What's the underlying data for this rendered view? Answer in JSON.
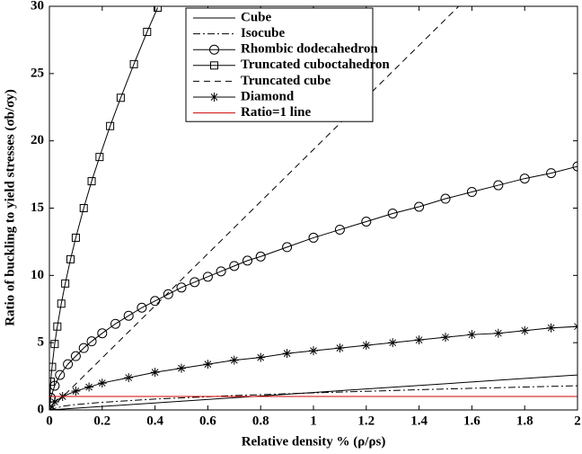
{
  "chart_data": {
    "type": "line",
    "xlabel": "Relative density % (ρ/ρs)",
    "ylabel": "Ratio of buckling to yield stresses (σb/σy)",
    "xlim": [
      0,
      2
    ],
    "ylim": [
      0,
      30
    ],
    "xticks": [
      0,
      0.2,
      0.4,
      0.6,
      0.8,
      1,
      1.2,
      1.4,
      1.6,
      1.8,
      2
    ],
    "yticks": [
      0,
      5,
      10,
      15,
      20,
      25,
      30
    ],
    "legend": "upper center",
    "series": [
      {
        "name": "Cube",
        "color": "#000000",
        "line_style": "solid",
        "x": [
          0,
          2
        ],
        "values": [
          0,
          2.6
        ]
      },
      {
        "name": "Isocube",
        "color": "#000000",
        "line_style": "dashdot",
        "x": [
          0,
          0.05,
          0.1,
          0.2,
          0.4,
          0.7,
          1,
          1.5,
          2
        ],
        "values": [
          0,
          0.28,
          0.4,
          0.57,
          0.81,
          1.07,
          1.27,
          1.56,
          1.8
        ]
      },
      {
        "name": "Rhombic dodecahedron",
        "color": "#000000",
        "line_style": "solid",
        "marker": "circle",
        "x": [
          0,
          0.005,
          0.02,
          0.04,
          0.07,
          0.1,
          0.13,
          0.16,
          0.2,
          0.25,
          0.3,
          0.35,
          0.4,
          0.45,
          0.5,
          0.55,
          0.6,
          0.65,
          0.7,
          0.75,
          0.8,
          0.9,
          1,
          1.1,
          1.2,
          1.3,
          1.4,
          1.5,
          1.6,
          1.7,
          1.8,
          1.9,
          2
        ],
        "values": [
          0,
          0.9,
          1.8,
          2.6,
          3.4,
          4.0,
          4.6,
          5.1,
          5.7,
          6.4,
          7.0,
          7.6,
          8.1,
          8.6,
          9.1,
          9.5,
          9.9,
          10.3,
          10.7,
          11.1,
          11.4,
          12.1,
          12.8,
          13.4,
          14.0,
          14.6,
          15.1,
          15.7,
          16.2,
          16.7,
          17.2,
          17.6,
          18.1
        ]
      },
      {
        "name": "Truncated cuboctahedron",
        "color": "#000000",
        "line_style": "solid",
        "marker": "square",
        "x": [
          0,
          0.005,
          0.01,
          0.02,
          0.03,
          0.045,
          0.06,
          0.08,
          0.1,
          0.13,
          0.16,
          0.19,
          0.23,
          0.27,
          0.32,
          0.37,
          0.41
        ],
        "values": [
          0,
          2.1,
          3.2,
          4.9,
          6.2,
          7.9,
          9.4,
          11.2,
          12.8,
          15.0,
          17.0,
          18.8,
          21.1,
          23.2,
          25.7,
          28.1,
          29.9
        ]
      },
      {
        "name": "Truncated cube",
        "color": "#000000",
        "line_style": "dashed",
        "x": [
          0,
          1.55
        ],
        "values": [
          0,
          30
        ]
      },
      {
        "name": "Diamond",
        "color": "#000000",
        "line_style": "solid",
        "marker": "star",
        "x": [
          0,
          0.02,
          0.05,
          0.1,
          0.15,
          0.2,
          0.3,
          0.4,
          0.5,
          0.6,
          0.7,
          0.8,
          0.9,
          1,
          1.1,
          1.2,
          1.3,
          1.4,
          1.5,
          1.6,
          1.7,
          1.8,
          1.9,
          2
        ],
        "values": [
          0,
          0.6,
          1.0,
          1.4,
          1.7,
          2.0,
          2.4,
          2.8,
          3.1,
          3.4,
          3.7,
          3.9,
          4.2,
          4.4,
          4.6,
          4.8,
          5.0,
          5.2,
          5.4,
          5.6,
          5.7,
          5.9,
          6.1,
          6.2
        ]
      },
      {
        "name": "Ratio=1 line",
        "color": "#d00000",
        "line_style": "solid",
        "x": [
          0,
          2
        ],
        "values": [
          1,
          1
        ]
      }
    ]
  }
}
